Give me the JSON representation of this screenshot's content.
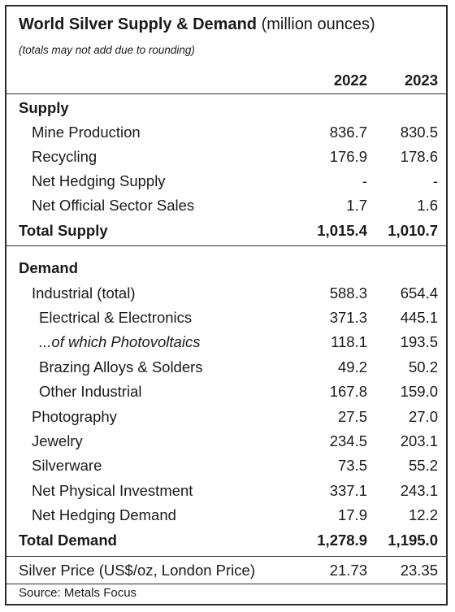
{
  "title": {
    "bold": "World Silver Supply & Demand",
    "normal": "(million ounces)",
    "note": "(totals may not add due to rounding)"
  },
  "columns": [
    "2022",
    "2023"
  ],
  "supply": {
    "heading": "Supply",
    "rows": [
      {
        "label": "Mine Production",
        "v2022": "836.7",
        "v2023": "830.5"
      },
      {
        "label": "Recycling",
        "v2022": "176.9",
        "v2023": "178.6"
      },
      {
        "label": "Net Hedging Supply",
        "v2022": "-",
        "v2023": "-"
      },
      {
        "label": "Net Official Sector Sales",
        "v2022": "1.7",
        "v2023": "1.6"
      }
    ],
    "total": {
      "label": "Total Supply",
      "v2022": "1,015.4",
      "v2023": "1,010.7"
    }
  },
  "demand": {
    "heading": "Demand",
    "rows": [
      {
        "label": "Industrial (total)",
        "v2022": "588.3",
        "v2023": "654.4"
      },
      {
        "label": "Electrical & Electronics",
        "v2022": "371.3",
        "v2023": "445.1"
      },
      {
        "label": "...of which Photovoltaics",
        "v2022": "118.1",
        "v2023": "193.5"
      },
      {
        "label": "Brazing Alloys & Solders",
        "v2022": "49.2",
        "v2023": "50.2"
      },
      {
        "label": "Other Industrial",
        "v2022": "167.8",
        "v2023": "159.0"
      },
      {
        "label": "Photography",
        "v2022": "27.5",
        "v2023": "27.0"
      },
      {
        "label": "Jewelry",
        "v2022": "234.5",
        "v2023": "203.1"
      },
      {
        "label": "Silverware",
        "v2022": "73.5",
        "v2023": "55.2"
      },
      {
        "label": "Net Physical Investment",
        "v2022": "337.1",
        "v2023": "243.1"
      },
      {
        "label": "Net Hedging Demand",
        "v2022": "17.9",
        "v2023": "12.2"
      }
    ],
    "total": {
      "label": "Total Demand",
      "v2022": "1,278.9",
      "v2023": "1,195.0"
    }
  },
  "price": {
    "label": "Silver Price (US$/oz, London Price)",
    "v2022": "21.73",
    "v2023": "23.35"
  },
  "source": "Source: Metals Focus"
}
